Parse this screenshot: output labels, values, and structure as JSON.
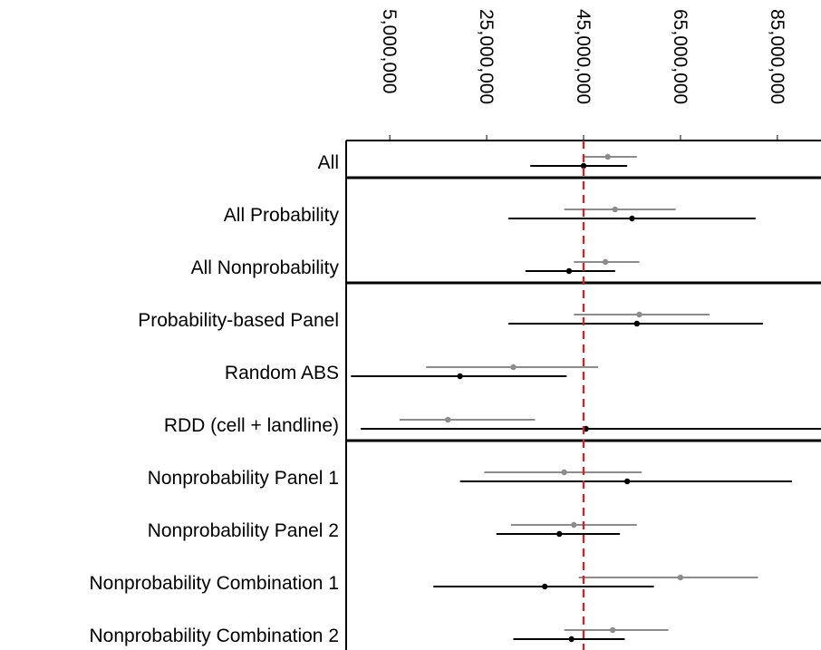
{
  "chart_data": {
    "type": "forest",
    "title": "",
    "xlabel": "",
    "ylabel": "",
    "xlim": [
      -4000000,
      94000000
    ],
    "x_ticks": [
      5000000,
      25000000,
      45000000,
      65000000,
      85000000
    ],
    "x_tick_labels": [
      "5,000,000",
      "25,000,000",
      "45,000,000",
      "65,000,000",
      "85,000,000"
    ],
    "reference_line": {
      "x": 45000000,
      "style": "dashed",
      "color": "#e41a1c"
    },
    "group_separators_after_rows": [
      0,
      2,
      5
    ],
    "colors": {
      "grey": "#8c8c8c",
      "black": "#000000"
    },
    "rows": [
      {
        "label": "All",
        "grey": {
          "est": 50000000,
          "lo": 45000000,
          "hi": 56000000
        },
        "black": {
          "est": 45000000,
          "lo": 34000000,
          "hi": 54000000
        }
      },
      {
        "label": "All Probability",
        "grey": {
          "est": 51500000,
          "lo": 41000000,
          "hi": 64000000
        },
        "black": {
          "est": 55000000,
          "lo": 29500000,
          "hi": 80500000
        }
      },
      {
        "label": "All Nonprobability",
        "grey": {
          "est": 49500000,
          "lo": 43000000,
          "hi": 56500000
        },
        "black": {
          "est": 42000000,
          "lo": 33000000,
          "hi": 51500000
        }
      },
      {
        "label": "Probability-based Panel",
        "grey": {
          "est": 56500000,
          "lo": 43000000,
          "hi": 71000000
        },
        "black": {
          "est": 56000000,
          "lo": 29500000,
          "hi": 82000000
        }
      },
      {
        "label": "Random ABS",
        "grey": {
          "est": 30500000,
          "lo": 12500000,
          "hi": 48000000
        },
        "black": {
          "est": 19500000,
          "lo": -3000000,
          "hi": 41500000
        }
      },
      {
        "label": "RDD (cell + landline)",
        "grey": {
          "est": 17000000,
          "lo": 7000000,
          "hi": 35000000
        },
        "black": {
          "est": 45500000,
          "lo": -1000000,
          "hi": 94000000
        }
      },
      {
        "label": "Nonprobability Panel 1",
        "grey": {
          "est": 41000000,
          "lo": 24500000,
          "hi": 57000000
        },
        "black": {
          "est": 54000000,
          "lo": 19500000,
          "hi": 88000000
        }
      },
      {
        "label": "Nonprobability Panel 2",
        "grey": {
          "est": 43000000,
          "lo": 30000000,
          "hi": 56000000
        },
        "black": {
          "est": 40000000,
          "lo": 27000000,
          "hi": 52500000
        }
      },
      {
        "label": "Nonprobability Combination 1",
        "grey": {
          "est": 65000000,
          "lo": 44000000,
          "hi": 81000000
        },
        "black": {
          "est": 37000000,
          "lo": 14000000,
          "hi": 59500000
        }
      },
      {
        "label": "Nonprobability Combination 2",
        "grey": {
          "est": 51000000,
          "lo": 41000000,
          "hi": 62500000
        },
        "black": {
          "est": 42500000,
          "lo": 30500000,
          "hi": 53500000
        }
      }
    ]
  }
}
